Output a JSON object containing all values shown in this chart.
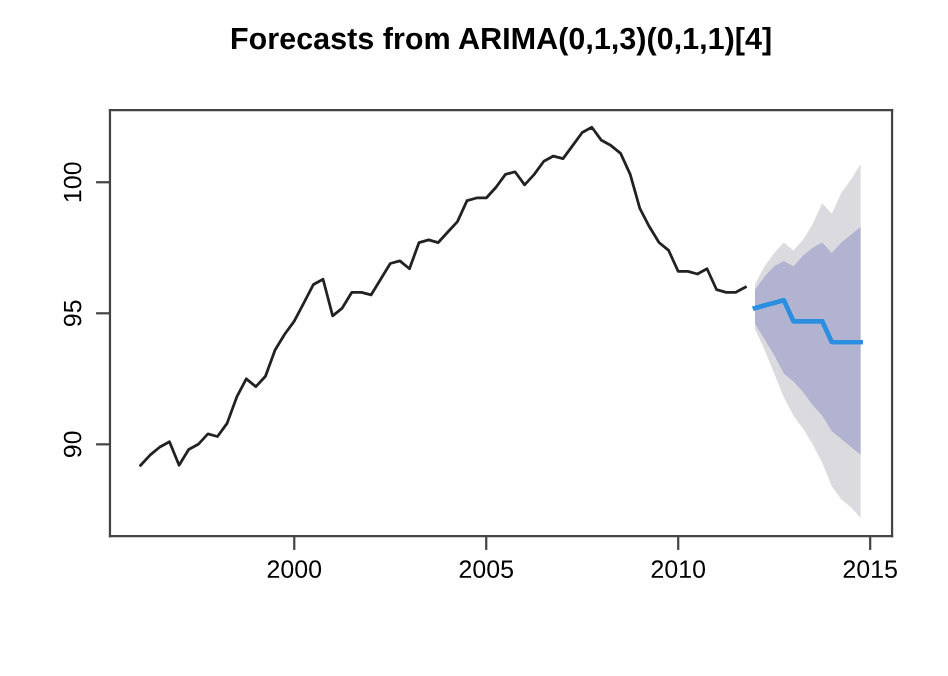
{
  "chart_data": {
    "type": "line",
    "title": "Forecasts from ARIMA(0,1,3)(0,1,1)[4]",
    "xlim": [
      1995.2,
      2015.57
    ],
    "ylim": [
      86.5,
      102.75
    ],
    "xticks": [
      2000,
      2005,
      2010,
      2015
    ],
    "yticks": [
      90,
      95,
      100
    ],
    "grid": false,
    "legend": false,
    "marker": "none",
    "line_style": "solid",
    "series": [
      {
        "color": "#222222",
        "x": [
          1996.0,
          1996.25,
          1996.5,
          1996.75,
          1997.0,
          1997.25,
          1997.5,
          1997.75,
          1998.0,
          1998.25,
          1998.5,
          1998.75,
          1999.0,
          1999.25,
          1999.5,
          1999.75,
          2000.0,
          2000.25,
          2000.5,
          2000.75,
          2001.0,
          2001.25,
          2001.5,
          2001.75,
          2002.0,
          2002.25,
          2002.5,
          2002.75,
          2003.0,
          2003.25,
          2003.5,
          2003.75,
          2004.0,
          2004.25,
          2004.5,
          2004.75,
          2005.0,
          2005.25,
          2005.5,
          2005.75,
          2006.0,
          2006.25,
          2006.5,
          2006.75,
          2007.0,
          2007.25,
          2007.5,
          2007.75,
          2008.0,
          2008.25,
          2008.5,
          2008.75,
          2009.0,
          2009.25,
          2009.5,
          2009.75,
          2010.0,
          2010.25,
          2010.5,
          2010.75,
          2011.0,
          2011.25,
          2011.5,
          2011.75
        ],
        "values": [
          89.2,
          89.6,
          89.9,
          90.1,
          89.2,
          89.8,
          90.0,
          90.4,
          90.3,
          90.8,
          91.8,
          92.5,
          92.2,
          92.6,
          93.6,
          94.2,
          94.7,
          95.4,
          96.1,
          96.3,
          94.9,
          95.2,
          95.8,
          95.8,
          95.7,
          96.3,
          96.9,
          97.0,
          96.7,
          97.7,
          97.8,
          97.7,
          98.1,
          98.5,
          99.3,
          99.4,
          99.4,
          99.8,
          100.3,
          100.4,
          99.9,
          100.3,
          100.8,
          101.0,
          100.9,
          101.4,
          101.9,
          102.1,
          101.6,
          101.4,
          101.1,
          100.3,
          99.0,
          98.3,
          97.7,
          97.4,
          96.6,
          96.6,
          96.5,
          96.7,
          95.9,
          95.8,
          95.8,
          96.0
        ]
      },
      {
        "color": "#2b8fe0",
        "x": [
          2012.0,
          2012.25,
          2012.5,
          2012.75,
          2013.0,
          2013.25,
          2013.5,
          2013.75,
          2014.0,
          2014.25,
          2014.5,
          2014.75
        ],
        "values": [
          95.2,
          95.3,
          95.4,
          95.5,
          94.7,
          94.7,
          94.7,
          94.7,
          93.9,
          93.9,
          93.9,
          93.9
        ],
        "lower": [
          94.4,
          93.6,
          92.7,
          91.8,
          91.1,
          90.6,
          90.0,
          89.3,
          88.4,
          87.9,
          87.6,
          87.2
        ],
        "upper": [
          96.1,
          96.8,
          97.3,
          97.7,
          97.4,
          97.8,
          98.4,
          99.2,
          98.8,
          99.6,
          100.1,
          100.7
        ]
      },
      {
        "color": "#2b8fe0",
        "x": [
          2012.0,
          2012.25,
          2012.5,
          2012.75,
          2013.0,
          2013.25,
          2013.5,
          2013.75,
          2014.0,
          2014.25,
          2014.5,
          2014.75
        ],
        "values": [
          95.2,
          95.3,
          95.4,
          95.5,
          94.7,
          94.7,
          94.7,
          94.7,
          93.9,
          93.9,
          93.9,
          93.9
        ],
        "lower": [
          94.6,
          94.0,
          93.4,
          92.7,
          92.4,
          92.0,
          91.5,
          91.1,
          90.5,
          90.2,
          89.9,
          89.6
        ],
        "upper": [
          95.9,
          96.4,
          96.8,
          97.0,
          96.8,
          97.2,
          97.5,
          97.7,
          97.3,
          97.7,
          98.0,
          98.3
        ]
      }
    ]
  }
}
